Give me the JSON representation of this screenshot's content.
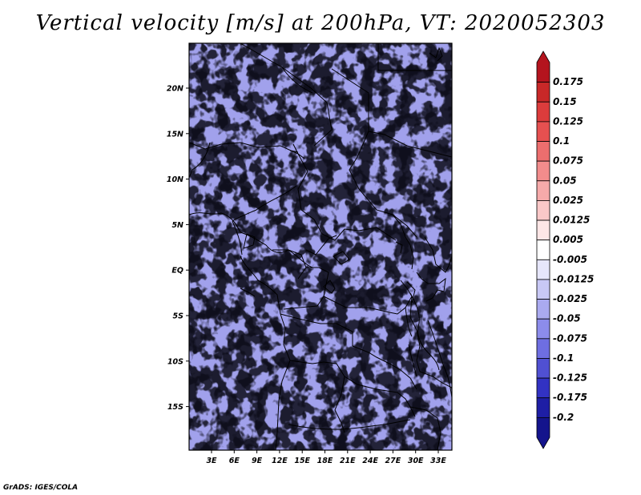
{
  "title": "Vertical velocity [m/s] at 200hPa, VT: 2020052303",
  "footer": "GrADS: IGES/COLA",
  "map": {
    "lat_ticks": [
      "20N",
      "15N",
      "10N",
      "5N",
      "EQ",
      "5S",
      "10S",
      "15S"
    ],
    "lon_ticks": [
      "3E",
      "6E",
      "9E",
      "12E",
      "15E",
      "18E",
      "21E",
      "24E",
      "27E",
      "30E",
      "33E"
    ]
  },
  "colorbar": {
    "labels": [
      "0.175",
      "0.15",
      "0.125",
      "0.1",
      "0.075",
      "0.05",
      "0.025",
      "0.0125",
      "0.005",
      "-0.005",
      "-0.0125",
      "-0.025",
      "-0.05",
      "-0.075",
      "-0.1",
      "-0.125",
      "-0.175",
      "-0.2"
    ],
    "colors": [
      "#b4141e",
      "#c82828",
      "#dc3c3c",
      "#e65050",
      "#ec6e6e",
      "#f28c8c",
      "#f6aaaa",
      "#fac8c8",
      "#fde6e6",
      "#ffffff",
      "#e6e6fb",
      "#c8c8f5",
      "#aaaaf0",
      "#8c8ceb",
      "#6e6ee1",
      "#5050d2",
      "#3232c3",
      "#1e1ea5",
      "#14148c"
    ]
  }
}
